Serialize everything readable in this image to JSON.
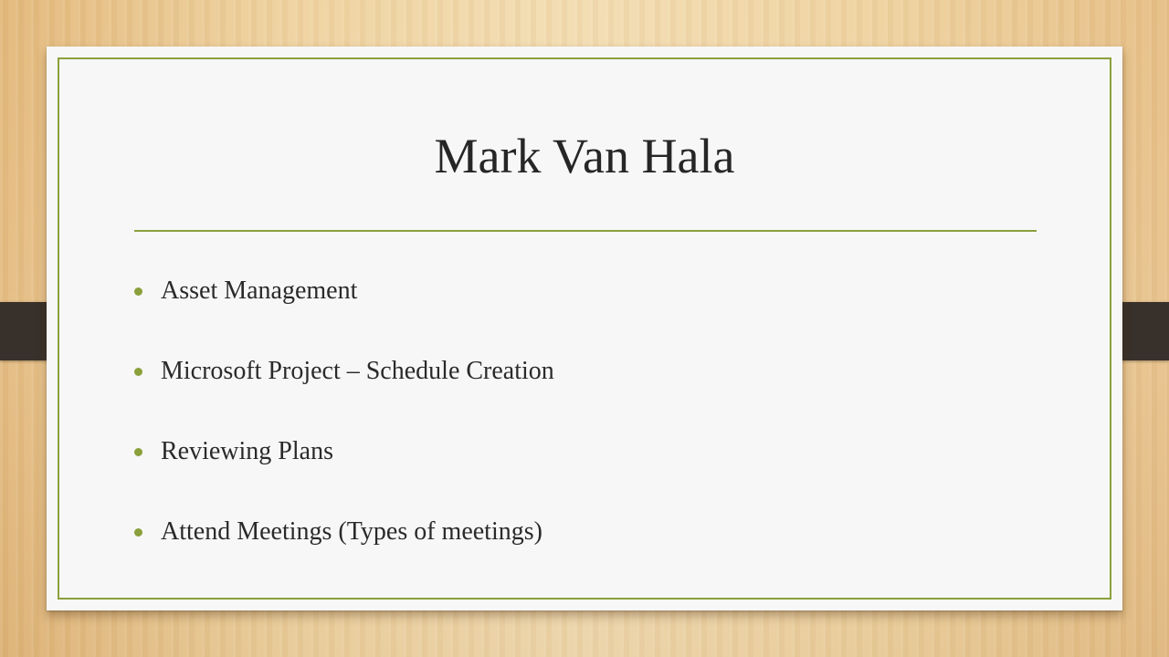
{
  "slide": {
    "title": "Mark Van Hala",
    "bullets": [
      "Asset Management",
      "Microsoft Project – Schedule Creation",
      "Reviewing Plans",
      "Attend Meetings (Types of meetings)"
    ]
  },
  "colors": {
    "accent": "#8aa03c",
    "card_background": "#f7f7f7",
    "title_text": "#262626",
    "strap": "#38302a",
    "wood": "#efd3a0"
  }
}
